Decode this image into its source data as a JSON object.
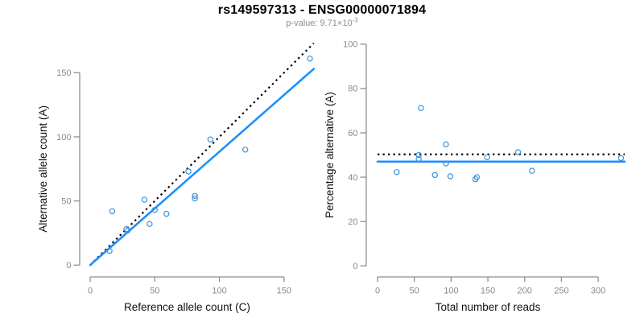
{
  "header": {
    "title": "rs149597313 - ENSG00000071894",
    "subtitle_prefix": "p-value: 9.71×10",
    "subtitle_exponent": "-3"
  },
  "colors": {
    "fit_line_blue": "#1E8FFF",
    "point_blue": "#3B92DB",
    "dotted_line_black": "#000000",
    "axis_gray": "#8E8E8E",
    "tick_label_gray": "#8A8A8A",
    "axis_title_black": "#111111",
    "title_black": "#000000",
    "subtitle_gray": "#8C8C8C"
  },
  "chart_data": [
    {
      "id": "allele-counts",
      "type": "scatter",
      "title": "",
      "xlabel": "Reference allele count (C)",
      "ylabel": "Alternative allele count (A)",
      "xlim": [
        0,
        175
      ],
      "ylim": [
        0,
        175
      ],
      "xticks": [
        0,
        50,
        100,
        150
      ],
      "yticks": [
        0,
        50,
        100,
        150
      ],
      "grid": false,
      "legend": null,
      "points": {
        "x": [
          15,
          17,
          28,
          29,
          42,
          46,
          50,
          59,
          76,
          81,
          81,
          93,
          120,
          170
        ],
        "y": [
          11,
          42,
          28,
          27,
          51,
          32,
          43,
          40,
          73,
          52,
          54,
          98,
          90,
          161
        ]
      },
      "lines": [
        {
          "name": "identity-line",
          "style": "dotted",
          "x": [
            0,
            173
          ],
          "y": [
            0,
            173
          ]
        },
        {
          "name": "regression-line",
          "style": "solid",
          "x": [
            0,
            173
          ],
          "y": [
            0,
            153
          ]
        }
      ]
    },
    {
      "id": "percentage-alternative",
      "type": "scatter",
      "title": "",
      "xlabel": "Total number of reads",
      "ylabel": "Percentage alternative (A)",
      "xlim": [
        0,
        336
      ],
      "ylim": [
        0,
        100
      ],
      "xticks": [
        0,
        50,
        100,
        150,
        200,
        250,
        300
      ],
      "yticks": [
        0,
        20,
        40,
        60,
        80,
        100
      ],
      "grid": false,
      "legend": null,
      "points": {
        "x": [
          26,
          59,
          56,
          56,
          93,
          78,
          93,
          99,
          149,
          133,
          135,
          191,
          210,
          331
        ],
        "y": [
          42.3,
          71.2,
          50.0,
          48.2,
          54.8,
          41.0,
          46.2,
          40.4,
          49.0,
          39.1,
          40.0,
          51.3,
          42.9,
          48.6
        ]
      },
      "lines": [
        {
          "name": "fifty-percent-line",
          "style": "dotted",
          "x": [
            0,
            336
          ],
          "y": [
            50.3,
            50.3
          ]
        },
        {
          "name": "mean-percentage-line",
          "style": "solid",
          "x": [
            0,
            336
          ],
          "y": [
            47,
            47
          ]
        }
      ]
    }
  ]
}
